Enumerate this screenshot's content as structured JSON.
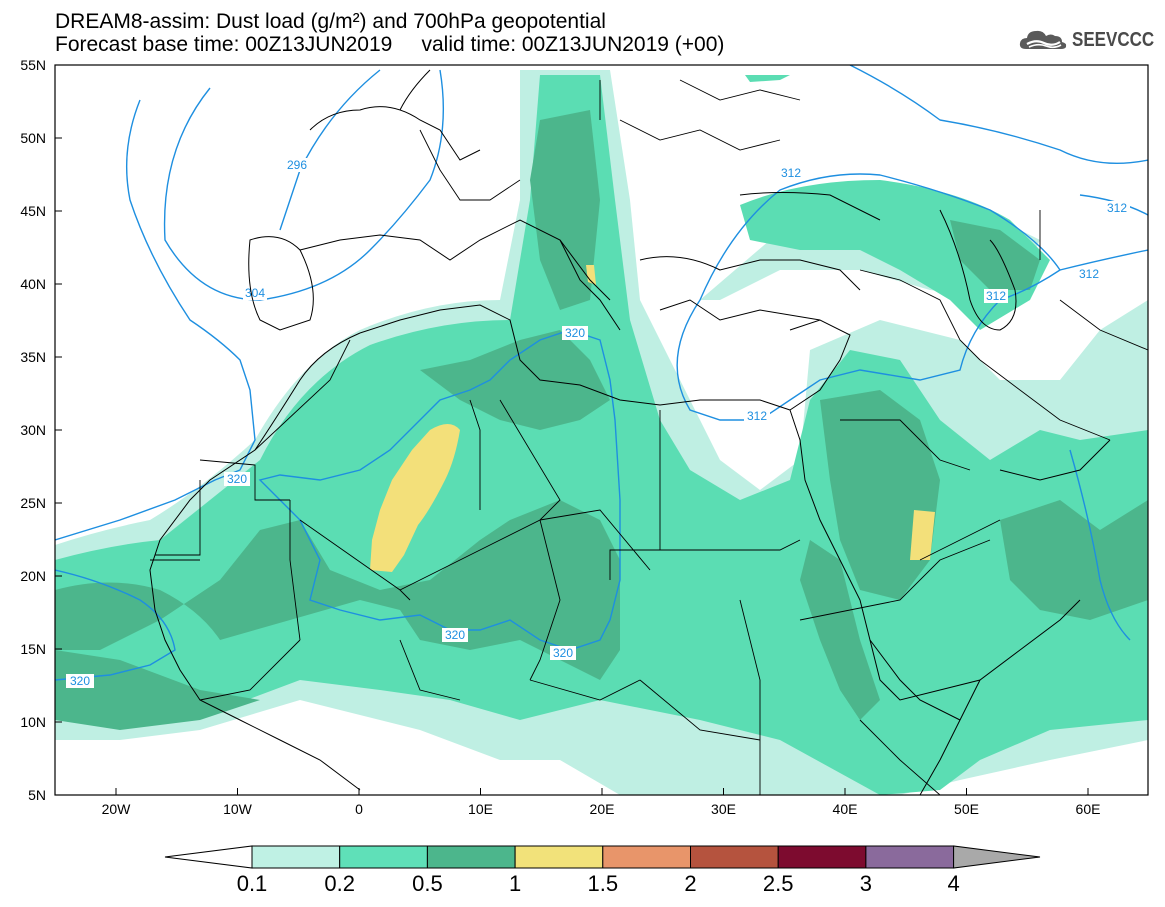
{
  "header": {
    "title_line1": "DREAM8-assim: Dust load (g/m²) and 700hPa geopotential",
    "title_line2": "Forecast base time: 00Z13JUN2019     valid time: 00Z13JUN2019 (+00)",
    "logo_text": "SEEVCCC",
    "logo_icon": "cloud-icon"
  },
  "map": {
    "lat_labels": [
      "55N",
      "50N",
      "45N",
      "40N",
      "35N",
      "30N",
      "25N",
      "20N",
      "15N",
      "10N",
      "5N"
    ],
    "lon_labels": [
      "20W",
      "10W",
      "0",
      "10E",
      "20E",
      "30E",
      "40E",
      "50E",
      "60E"
    ],
    "contour_labels": [
      "296",
      "304",
      "312",
      "312",
      "312",
      "312",
      "320",
      "312",
      "320",
      "320",
      "320"
    ],
    "dust_colors": {
      "0.1": "#bfefe3",
      "0.2": "#5bddb3",
      "0.5": "#4cb68c",
      "1": "#f3e07a",
      "ocean": "#ffffff",
      "contour": "#1e8fe0",
      "coast": "#000000"
    }
  },
  "colorbar": {
    "levels": [
      "0.1",
      "0.2",
      "0.5",
      "1",
      "1.5",
      "2",
      "2.5",
      "3",
      "4"
    ],
    "colors": [
      "#ffffff",
      "#bff1e4",
      "#5fe0b8",
      "#4cb68c",
      "#f2e27a",
      "#e8956a",
      "#b5533e",
      "#7d0b2f",
      "#8a6a9c",
      "#a9a9a9"
    ]
  }
}
